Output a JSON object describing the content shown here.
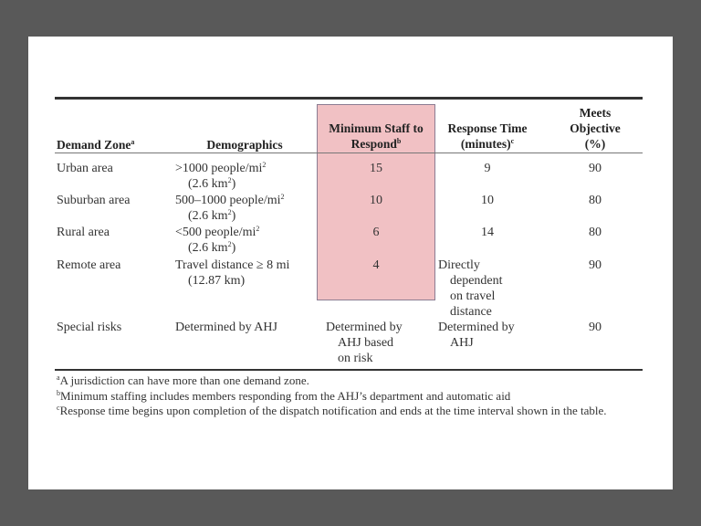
{
  "table": {
    "headers": {
      "demand_zone": "Demand Zone",
      "demand_zone_note": "a",
      "demographics": "Demographics",
      "min_staff_1": "Minimum Staff to",
      "min_staff_2": "Respond",
      "min_staff_note": "b",
      "response_1": "Response Time",
      "response_2": "(minutes)",
      "response_note": "c",
      "meets_1": "Meets",
      "meets_2": "Objective",
      "meets_3": "(%)"
    },
    "rows": [
      {
        "zone": "Urban area",
        "demo_1": ">1000 people/mi",
        "demo_sup": "2",
        "demo_2": "(2.6 km",
        "demo_2_sup": "2",
        "demo_2_end": ")",
        "staff": "15",
        "response": "9",
        "meets": "90"
      },
      {
        "zone": "Suburban area",
        "demo_1": "500–1000 people/mi",
        "demo_sup": "2",
        "demo_2": "(2.6 km",
        "demo_2_sup": "2",
        "demo_2_end": ")",
        "staff": "10",
        "response": "10",
        "meets": "80"
      },
      {
        "zone": "Rural area",
        "demo_1": "<500 people/mi",
        "demo_sup": "2",
        "demo_2": "(2.6 km",
        "demo_2_sup": "2",
        "demo_2_end": ")",
        "staff": "6",
        "response": "14",
        "meets": "80"
      },
      {
        "zone": "Remote area",
        "demo_1": "Travel distance ≥ 8 mi",
        "demo_2": "(12.87 km)",
        "staff": "4",
        "response_lines": [
          "Directly",
          "dependent",
          "on travel",
          "distance"
        ],
        "meets": "90"
      },
      {
        "zone": "Special risks",
        "demo_1": "Determined by AHJ",
        "staff_lines": [
          "Determined by",
          "AHJ based",
          "on risk"
        ],
        "response_lines": [
          "Determined by",
          "AHJ"
        ],
        "meets": "90"
      }
    ],
    "highlight_color": "#f1c1c4"
  },
  "footnotes": [
    {
      "mark": "a",
      "text": "A jurisdiction can have more than one demand zone."
    },
    {
      "mark": "b",
      "text": "Minimum staffing includes members responding from the AHJ’s department and automatic aid"
    },
    {
      "mark": "c",
      "text": "Response time begins upon completion of the dispatch notification and ends at the time interval shown in the table."
    }
  ]
}
